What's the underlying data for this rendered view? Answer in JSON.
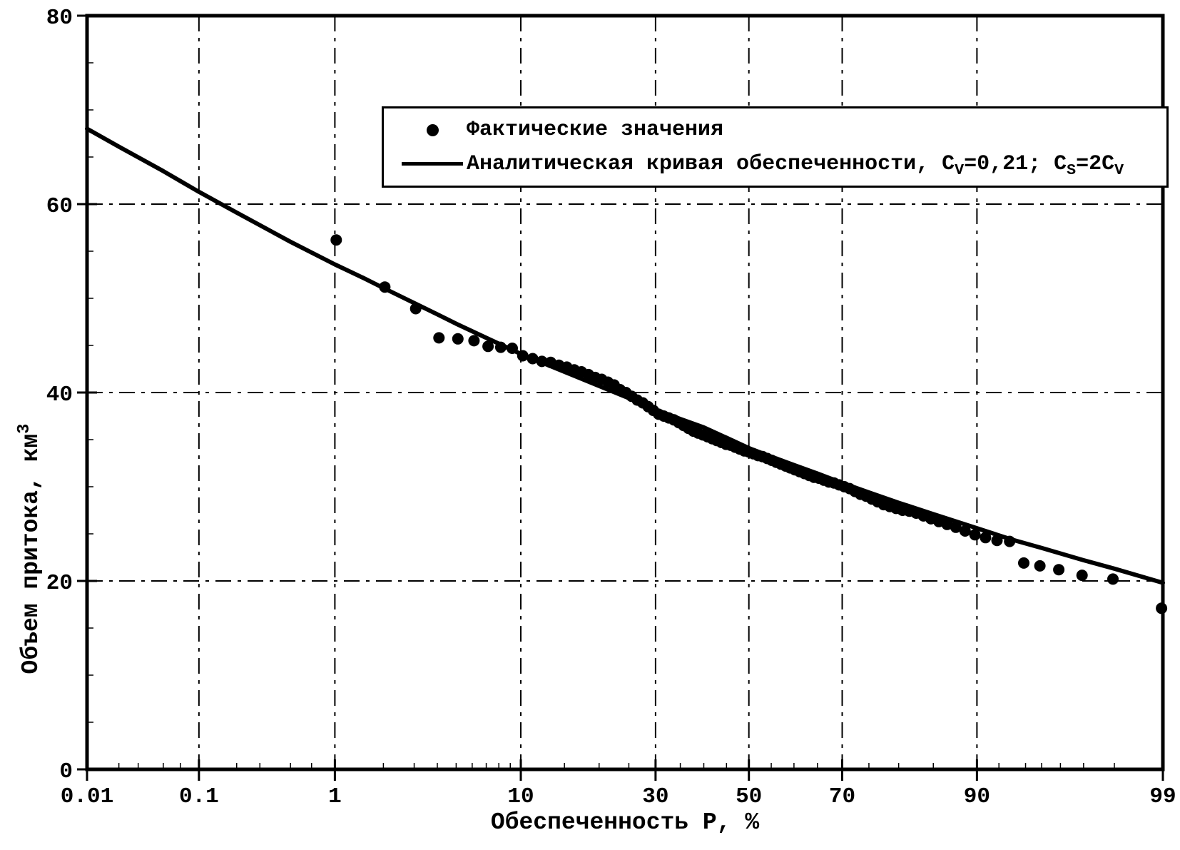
{
  "chart_data": {
    "type": "probability-plot (scatter + analytical exceedance curve)",
    "title": "",
    "xlabel": "Обеспеченность Р, %",
    "ylabel": "Объем притока, км3",
    "ylabel_parts": [
      {
        "t": "Объем притока, км"
      },
      {
        "t": "3",
        "sup": true
      }
    ],
    "x_scale": "normal-probability",
    "xlim": [
      0.01,
      99
    ],
    "ylim": [
      0,
      80
    ],
    "x_ticks": [
      "0.01",
      "0.1",
      "1",
      "10",
      "30",
      "50",
      "70",
      "90",
      "99"
    ],
    "x_minor_ticks": [
      0.02,
      0.03,
      0.05,
      0.07,
      0.2,
      0.3,
      0.5,
      0.7,
      2,
      3,
      4,
      5,
      6,
      7,
      8,
      9,
      15,
      20,
      25,
      35,
      40,
      45,
      55,
      60,
      65,
      75,
      80,
      85,
      92,
      94,
      95,
      96,
      97,
      98
    ],
    "y_ticks": [
      "0",
      "20",
      "40",
      "60",
      "80"
    ],
    "y_minor_step": 5,
    "grid": {
      "style": "dash-dot",
      "vertical_at": [
        0.1,
        1,
        10,
        30,
        50,
        70,
        90
      ],
      "horizontal_at": [
        20,
        40,
        60
      ]
    },
    "legend": {
      "position": "top-inside",
      "items": [
        {
          "marker": "dot",
          "label": "Фактические значения",
          "parts": [
            {
              "t": "Фактические значения"
            }
          ]
        },
        {
          "marker": "line",
          "label": "Аналитическая кривая обеспеченности, CV=0,21; CS=2CV",
          "parts": [
            {
              "t": "Аналитическая кривая обеспеченности, C"
            },
            {
              "t": "V",
              "sub": true
            },
            {
              "t": "=0,21; C"
            },
            {
              "t": "S",
              "sub": true
            },
            {
              "t": "=2C"
            },
            {
              "t": "V",
              "sub": true
            }
          ]
        }
      ]
    },
    "series": [
      {
        "name": "Фактические значения",
        "type": "scatter",
        "points": [
          [
            1.02,
            56.2
          ],
          [
            2.04,
            51.2
          ],
          [
            3.06,
            48.9
          ],
          [
            4.08,
            45.8
          ],
          [
            5.1,
            45.7
          ],
          [
            6.12,
            45.5
          ],
          [
            7.14,
            44.9
          ],
          [
            8.16,
            44.8
          ],
          [
            9.18,
            44.7
          ],
          [
            10.2,
            43.9
          ],
          [
            11.22,
            43.6
          ],
          [
            12.24,
            43.3
          ],
          [
            13.27,
            43.2
          ],
          [
            14.29,
            42.9
          ],
          [
            15.31,
            42.7
          ],
          [
            16.33,
            42.4
          ],
          [
            17.35,
            42.2
          ],
          [
            18.37,
            41.9
          ],
          [
            19.39,
            41.6
          ],
          [
            20.41,
            41.4
          ],
          [
            21.43,
            41.1
          ],
          [
            22.45,
            40.8
          ],
          [
            23.47,
            40.3
          ],
          [
            24.49,
            40.0
          ],
          [
            25.51,
            39.6
          ],
          [
            26.53,
            39.2
          ],
          [
            27.55,
            38.9
          ],
          [
            28.57,
            38.5
          ],
          [
            29.59,
            38.1
          ],
          [
            30.61,
            37.7
          ],
          [
            31.63,
            37.5
          ],
          [
            32.65,
            37.3
          ],
          [
            33.67,
            37.1
          ],
          [
            34.69,
            36.8
          ],
          [
            35.71,
            36.5
          ],
          [
            36.73,
            36.2
          ],
          [
            37.76,
            35.9
          ],
          [
            38.78,
            35.7
          ],
          [
            39.8,
            35.5
          ],
          [
            40.82,
            35.3
          ],
          [
            41.84,
            35.1
          ],
          [
            42.86,
            34.9
          ],
          [
            43.88,
            34.7
          ],
          [
            44.9,
            34.5
          ],
          [
            45.92,
            34.4
          ],
          [
            46.94,
            34.2
          ],
          [
            47.96,
            34.0
          ],
          [
            48.98,
            33.8
          ],
          [
            50.0,
            33.7
          ],
          [
            51.02,
            33.5
          ],
          [
            52.04,
            33.3
          ],
          [
            53.06,
            33.2
          ],
          [
            54.08,
            33.0
          ],
          [
            55.1,
            32.8
          ],
          [
            56.12,
            32.6
          ],
          [
            57.14,
            32.4
          ],
          [
            58.16,
            32.2
          ],
          [
            59.18,
            32.0
          ],
          [
            60.2,
            31.8
          ],
          [
            61.22,
            31.6
          ],
          [
            62.24,
            31.4
          ],
          [
            63.27,
            31.2
          ],
          [
            64.29,
            31.0
          ],
          [
            65.31,
            30.9
          ],
          [
            66.33,
            30.7
          ],
          [
            67.35,
            30.5
          ],
          [
            68.37,
            30.4
          ],
          [
            69.39,
            30.2
          ],
          [
            70.41,
            30.0
          ],
          [
            71.43,
            29.8
          ],
          [
            72.45,
            29.5
          ],
          [
            73.47,
            29.2
          ],
          [
            74.49,
            29.0
          ],
          [
            75.51,
            28.7
          ],
          [
            76.53,
            28.4
          ],
          [
            77.55,
            28.1
          ],
          [
            78.57,
            27.9
          ],
          [
            79.59,
            27.7
          ],
          [
            80.61,
            27.5
          ],
          [
            81.63,
            27.4
          ],
          [
            82.65,
            27.2
          ],
          [
            83.67,
            26.9
          ],
          [
            84.69,
            26.6
          ],
          [
            85.71,
            26.3
          ],
          [
            86.73,
            26.0
          ],
          [
            87.76,
            25.7
          ],
          [
            88.78,
            25.3
          ],
          [
            89.8,
            24.9
          ],
          [
            90.82,
            24.6
          ],
          [
            91.84,
            24.3
          ],
          [
            92.86,
            24.2
          ],
          [
            93.88,
            21.9
          ],
          [
            94.9,
            21.6
          ],
          [
            95.92,
            21.2
          ],
          [
            96.94,
            20.6
          ],
          [
            97.96,
            20.2
          ],
          [
            98.98,
            17.1
          ]
        ]
      },
      {
        "name": "Аналитическая кривая обеспеченности, CV=0,21; CS=2CV",
        "type": "line",
        "points": [
          [
            0.01,
            68.0
          ],
          [
            0.02,
            66.1
          ],
          [
            0.05,
            63.5
          ],
          [
            0.1,
            61.3
          ],
          [
            0.2,
            59.1
          ],
          [
            0.5,
            56.0
          ],
          [
            1,
            53.6
          ],
          [
            1.5,
            52.2
          ],
          [
            2,
            51.1
          ],
          [
            3,
            49.5
          ],
          [
            4,
            48.3
          ],
          [
            5,
            47.3
          ],
          [
            7,
            45.8
          ],
          [
            10,
            44.1
          ],
          [
            15,
            42.2
          ],
          [
            20,
            40.7
          ],
          [
            25,
            39.4
          ],
          [
            30,
            38.2
          ],
          [
            35,
            37.2
          ],
          [
            40,
            36.3
          ],
          [
            45,
            35.2
          ],
          [
            50,
            34.1
          ],
          [
            55,
            33.2
          ],
          [
            60,
            32.3
          ],
          [
            65,
            31.4
          ],
          [
            70,
            30.4
          ],
          [
            75,
            29.4
          ],
          [
            80,
            28.3
          ],
          [
            85,
            27.1
          ],
          [
            90,
            25.6
          ],
          [
            93,
            24.4
          ],
          [
            95,
            23.5
          ],
          [
            97,
            22.2
          ],
          [
            98,
            21.3
          ],
          [
            99,
            19.8
          ]
        ]
      }
    ]
  },
  "colors": {
    "ink": "#000000",
    "paper": "#ffffff"
  }
}
